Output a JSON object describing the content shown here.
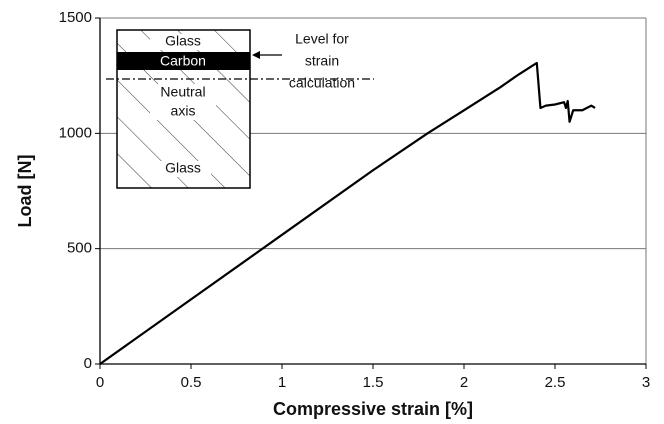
{
  "chart_data": {
    "type": "line",
    "x_label": "Compressive strain [%]",
    "y_label": "Load [N]",
    "xlim": [
      0,
      3
    ],
    "ylim": [
      0,
      1500
    ],
    "xticks": [
      0,
      0.5,
      1,
      1.5,
      2,
      2.5,
      3
    ],
    "yticks": [
      0,
      500,
      1000,
      1500
    ],
    "grid": true,
    "series": [
      {
        "color": "#000000",
        "x": [
          0,
          0.5,
          1,
          1.5,
          1.8,
          2,
          2.2,
          2.3,
          2.4,
          2.42,
          2.45,
          2.5,
          2.55,
          2.56,
          2.57,
          2.58,
          2.6,
          2.65,
          2.7,
          2.72
        ],
        "values": [
          0,
          280,
          560,
          840,
          1000,
          1100,
          1200,
          1255,
          1305,
          1110,
          1120,
          1125,
          1135,
          1110,
          1140,
          1050,
          1100,
          1100,
          1120,
          1110
        ]
      }
    ],
    "inset": {
      "top": "Glass",
      "middle": "Carbon",
      "axis": [
        "Neutral",
        "axis"
      ],
      "bottom": "Glass",
      "note": [
        "Level for",
        "strain",
        "calculation"
      ]
    }
  }
}
